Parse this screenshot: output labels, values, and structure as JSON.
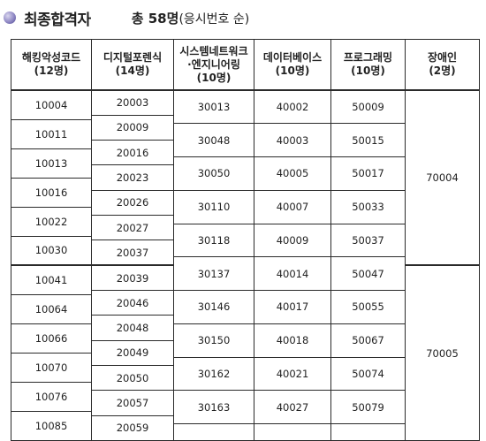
{
  "title": "최종합격자",
  "summary": {
    "prefix": "총",
    "count": "58명",
    "note": "(응시번호 순)"
  },
  "columns": [
    {
      "name": "해킹악성코드",
      "count": "(12명)"
    },
    {
      "name": "디지털포렌식",
      "count": "(14명)"
    },
    {
      "name": "시스템네트워크\n·엔지니어링",
      "count": "(10명)"
    },
    {
      "name": "데이터베이스",
      "count": "(10명)"
    },
    {
      "name": "프로그래밍",
      "count": "(10명)"
    },
    {
      "name": "장애인",
      "count": "(2명)"
    }
  ],
  "col1": [
    "10004",
    "10011",
    "10013",
    "10016",
    "10022",
    "10030",
    "10041",
    "10064",
    "10066",
    "10070",
    "10076",
    "10085"
  ],
  "col2": [
    "20003",
    "20009",
    "20016",
    "20023",
    "20026",
    "20027",
    "20037",
    "20039",
    "20046",
    "20048",
    "20049",
    "20050",
    "20057",
    "20059"
  ],
  "col3": [
    "30013",
    "30048",
    "30050",
    "30110",
    "30118",
    "30137",
    "30146",
    "30150",
    "30162",
    "30163"
  ],
  "col4": [
    "40002",
    "40003",
    "40005",
    "40007",
    "40009",
    "40014",
    "40017",
    "40018",
    "40021",
    "40027"
  ],
  "col5": [
    "50009",
    "50015",
    "50017",
    "50033",
    "50037",
    "50047",
    "50055",
    "50067",
    "50074",
    "50079"
  ],
  "col6": [
    "70004",
    "70005"
  ]
}
